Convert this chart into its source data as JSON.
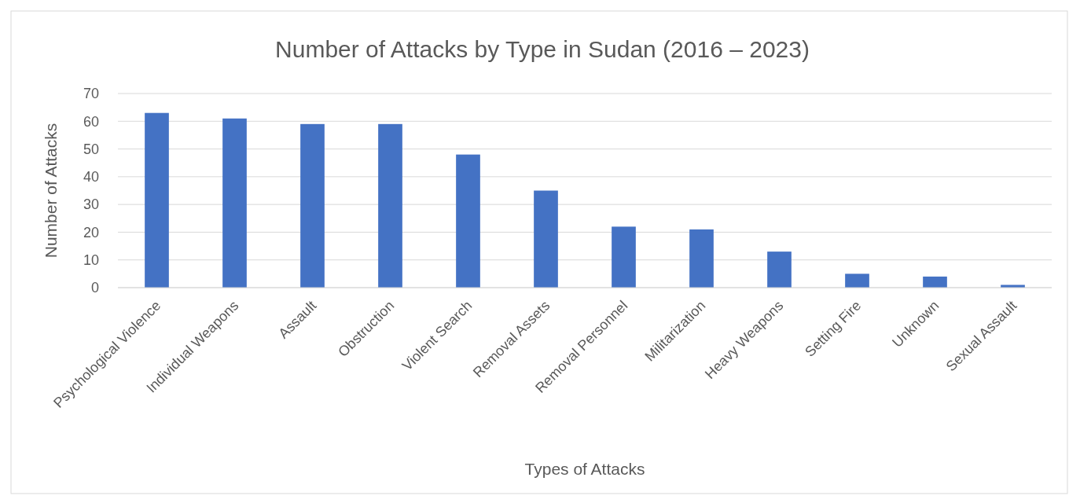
{
  "chart_data": {
    "type": "bar",
    "title": "Number of Attacks by Type in Sudan (2016 – 2023)",
    "xlabel": "Types of Attacks",
    "ylabel": "Number of Attacks",
    "categories": [
      "Psychological Violence",
      "Individual Weapons",
      "Assault",
      "Obstruction",
      "Violent Search",
      "Removal Assets",
      "Removal Personnel",
      "Militarization",
      "Heavy Weapons",
      "Setting Fire",
      "Unknown",
      "Sexual Assault"
    ],
    "values": [
      63,
      61,
      59,
      59,
      48,
      35,
      22,
      21,
      13,
      5,
      4,
      1
    ],
    "color": "#4472c4",
    "ylim": [
      0,
      70
    ],
    "yticks": [
      0,
      10,
      20,
      30,
      40,
      50,
      60,
      70
    ],
    "grid": "y"
  }
}
